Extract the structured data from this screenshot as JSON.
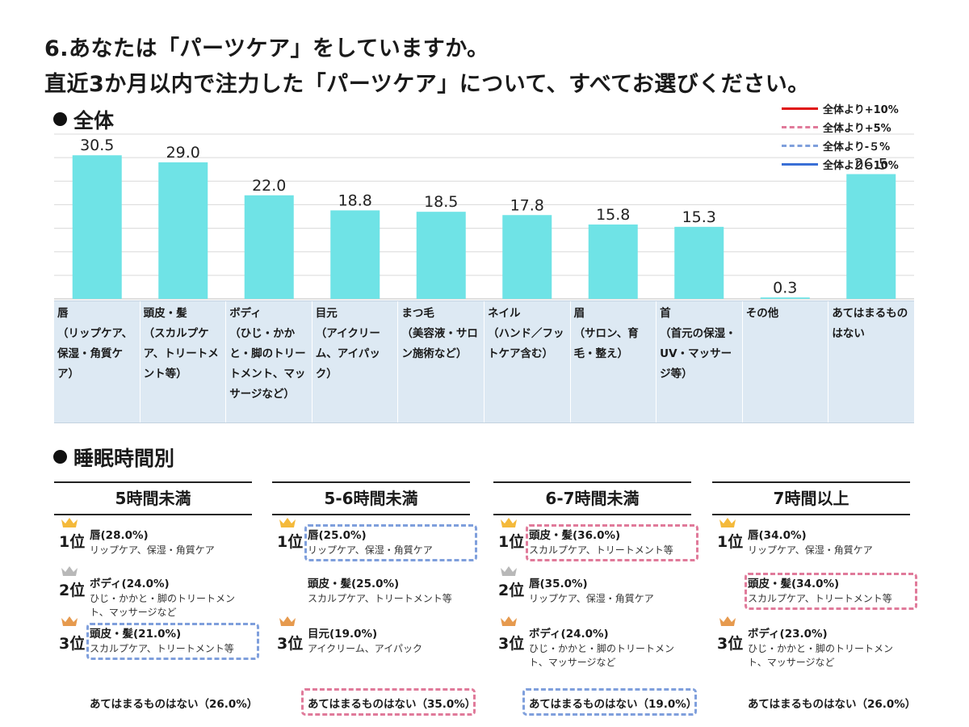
{
  "title_line1": "6.あなたは「パーツケア」をしていますか。",
  "title_line2": "直近3か月以内で注力した「パーツケア」について、すべてお選びください。",
  "section_overall": "全体",
  "section_sleep": "睡眠時間別",
  "legend": [
    {
      "label": "全体より+10%",
      "color": "#e01010",
      "dash": false
    },
    {
      "label": "全体より+5%",
      "color": "#e07a9a",
      "dash": true
    },
    {
      "label": "全体より-５%",
      "color": "#7f9fdc",
      "dash": true
    },
    {
      "label": "全体より−10%",
      "color": "#3a6fd6",
      "dash": false
    }
  ],
  "chart_data": {
    "type": "bar",
    "categories": [
      "唇",
      "頭皮・髪",
      "ボディ",
      "目元",
      "まつ毛",
      "ネイル",
      "眉",
      "首",
      "その他",
      "あてはまるものはない"
    ],
    "category_details": [
      "（リップケア、保湿・角質ケア）",
      "（スカルプケア、トリートメント等）",
      "（ひじ・かかと・脚のトリートメント、マッサージなど）",
      "（アイクリーム、アイパック）",
      "（美容液・サロン施術など）",
      "（ハンド／フットケア含む）",
      "（サロン、育毛・整え）",
      "（首元の保湿・UV・マッサージ等）",
      "",
      ""
    ],
    "values": [
      30.5,
      29.0,
      22.0,
      18.8,
      18.5,
      17.8,
      15.8,
      15.3,
      0.3,
      26.5
    ],
    "value_labels": [
      "30.5",
      "29.0",
      "22.0",
      "18.8",
      "18.5",
      "17.8",
      "15.8",
      "15.3",
      "0.3",
      "26.5"
    ],
    "ylim": [
      0,
      35
    ],
    "bar_color": "#6fe3e6",
    "grid": true
  },
  "sleep_groups": [
    {
      "title": "5時間未満",
      "ranks": [
        {
          "rank": "1位",
          "main": "唇(28.0%)",
          "sub": [
            "リップケア、保湿・角質ケア"
          ],
          "crown": "gold",
          "box": null
        },
        {
          "rank": "2位",
          "main": "ボディ(24.0%)",
          "sub": [
            "ひじ・かかと・脚のトリートメン",
            "ト、マッサージなど"
          ],
          "crown": "silver",
          "box": null
        },
        {
          "rank": "3位",
          "main": "頭皮・髪(21.0%)",
          "sub": [
            "スカルプケア、トリートメント等"
          ],
          "crown": "bronze",
          "box": "blue"
        }
      ],
      "none": {
        "label": "あてはまるものはない（26.0%）",
        "box": null
      }
    },
    {
      "title": "5-6時間未満",
      "ranks": [
        {
          "rank": "1位",
          "main": "唇(25.0%)",
          "sub": [
            "リップケア、保湿・角質ケア"
          ],
          "crown": "gold",
          "box": "blue"
        },
        {
          "rank": "",
          "main": "頭皮・髪(25.0%)",
          "sub": [
            "スカルプケア、トリートメント等"
          ],
          "crown": null,
          "box": null
        },
        {
          "rank": "3位",
          "main": "目元(19.0%)",
          "sub": [
            "アイクリーム、アイパック"
          ],
          "crown": "bronze",
          "box": null
        }
      ],
      "none": {
        "label": "あてはまるものはない（35.0%）",
        "box": "pink"
      }
    },
    {
      "title": "6-7時間未満",
      "ranks": [
        {
          "rank": "1位",
          "main": "頭皮・髪(36.0%)",
          "sub": [
            "スカルプケア、トリートメント等"
          ],
          "crown": "gold",
          "box": "pink"
        },
        {
          "rank": "2位",
          "main": "唇(35.0%)",
          "sub": [
            "リップケア、保湿・角質ケア"
          ],
          "crown": "silver",
          "box": null
        },
        {
          "rank": "3位",
          "main": "ボディ(24.0%)",
          "sub": [
            "ひじ・かかと・脚のトリートメン",
            "ト、マッサージなど"
          ],
          "crown": "bronze",
          "box": null
        }
      ],
      "none": {
        "label": "あてはまるものはない（19.0%）",
        "box": "blue"
      }
    },
    {
      "title": "7時間以上",
      "ranks": [
        {
          "rank": "1位",
          "main": "唇(34.0%)",
          "sub": [
            "リップケア、保湿・角質ケア"
          ],
          "crown": "gold",
          "box": null
        },
        {
          "rank": "",
          "main": "頭皮・髪(34.0%)",
          "sub": [
            "スカルプケア、トリートメント等"
          ],
          "crown": null,
          "box": "pink"
        },
        {
          "rank": "3位",
          "main": "ボディ(23.0%)",
          "sub": [
            "ひじ・かかと・脚のトリートメン",
            "ト、マッサージなど"
          ],
          "crown": "bronze",
          "box": null
        }
      ],
      "none": {
        "label": "あてはまるものはない（26.0%）",
        "box": null
      }
    }
  ],
  "colors": {
    "gold": "#f4b93a",
    "silver": "#b8b8b8",
    "bronze": "#e69a4e",
    "pink": "#e07a9a",
    "blue": "#7f9fdc"
  }
}
